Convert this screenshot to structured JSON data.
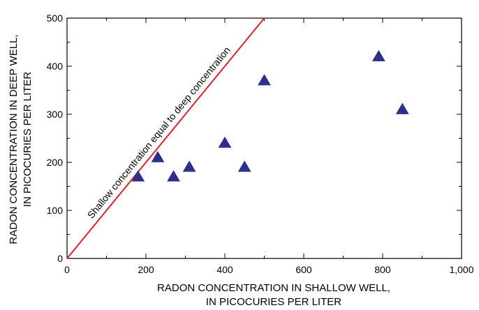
{
  "chart_data": {
    "type": "scatter",
    "title": "",
    "xlabel_lines": [
      "RADON CONCENTRATION IN SHALLOW WELL,",
      "IN PICOCURIES PER LITER"
    ],
    "ylabel_lines": [
      "RADON CONCENTRATION IN DEEP WELL,",
      "IN PICOCURIES PER LITER"
    ],
    "xlim": [
      0,
      1000
    ],
    "ylim": [
      0,
      500
    ],
    "xticks": [
      0,
      200,
      400,
      600,
      800,
      1000
    ],
    "xtick_labels": [
      "0",
      "200",
      "400",
      "600",
      "800",
      "1,000"
    ],
    "yticks": [
      0,
      100,
      200,
      300,
      400,
      500
    ],
    "ytick_labels": [
      "0",
      "100",
      "200",
      "300",
      "400",
      "500"
    ],
    "grid": false,
    "marker": "triangle",
    "marker_color": "#2e2e8c",
    "points": [
      {
        "x": 180,
        "y": 170
      },
      {
        "x": 230,
        "y": 210
      },
      {
        "x": 270,
        "y": 170
      },
      {
        "x": 310,
        "y": 190
      },
      {
        "x": 400,
        "y": 240
      },
      {
        "x": 450,
        "y": 190
      },
      {
        "x": 500,
        "y": 370
      },
      {
        "x": 790,
        "y": 420
      },
      {
        "x": 850,
        "y": 310
      }
    ],
    "reference_line": {
      "label": "Shallow concentration equal to deep concentration",
      "x": [
        0,
        500
      ],
      "y": [
        0,
        500
      ],
      "color": "#e0202a"
    }
  }
}
